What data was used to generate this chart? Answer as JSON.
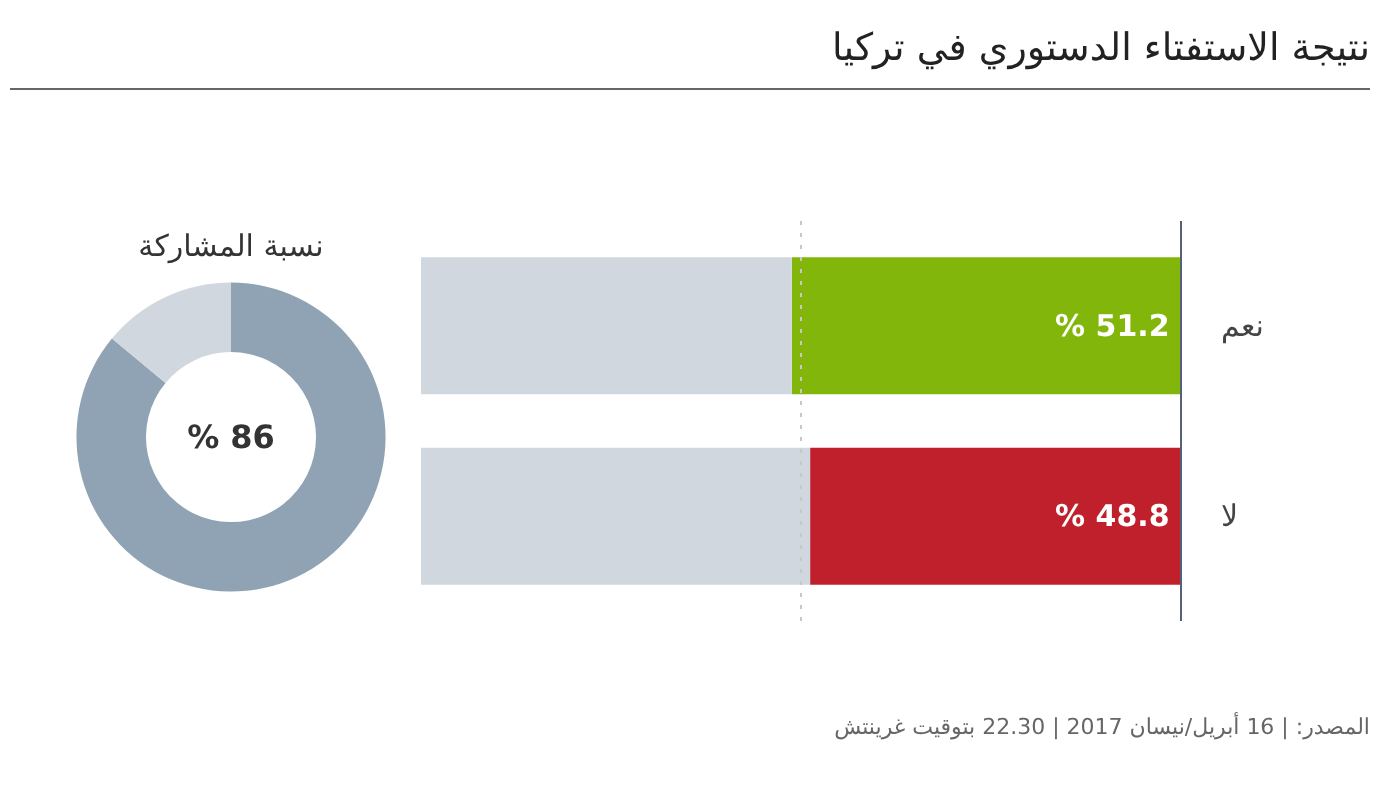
{
  "chart_data": [
    {
      "type": "bar",
      "title": "نتيجة الاستفتاء الدستوري في تركيا",
      "orientation": "horizontal",
      "stacked": true,
      "categories": [
        "نعم",
        "لا"
      ],
      "series": [
        {
          "colors": [
            "#82b60a",
            "#c0202c"
          ],
          "values": [
            51.2,
            48.8
          ],
          "value_labels": [
            "% 51.2",
            "% 48.8"
          ]
        },
        {
          "color": "#d0d7de",
          "values": [
            48.8,
            51.2
          ]
        }
      ],
      "xlim": [
        100,
        0
      ],
      "tick_labels": "y",
      "ref_lines": [
        {
          "axis": "x",
          "value": 50,
          "color": "#c8c8c8",
          "line_style": "dotted"
        }
      ],
      "annotations": [
        "المصدر: | 16 أبريل/نيسان 2017 | 22.30 بتوقيت غرينتش"
      ]
    },
    {
      "type": "donut",
      "title": "نسبة المشاركة",
      "categories": [
        null,
        null
      ],
      "values": [
        86,
        14
      ],
      "colors": [
        "#8fa3b4",
        "#d0d7de"
      ],
      "value_labels": [
        "% 86",
        null
      ]
    }
  ]
}
